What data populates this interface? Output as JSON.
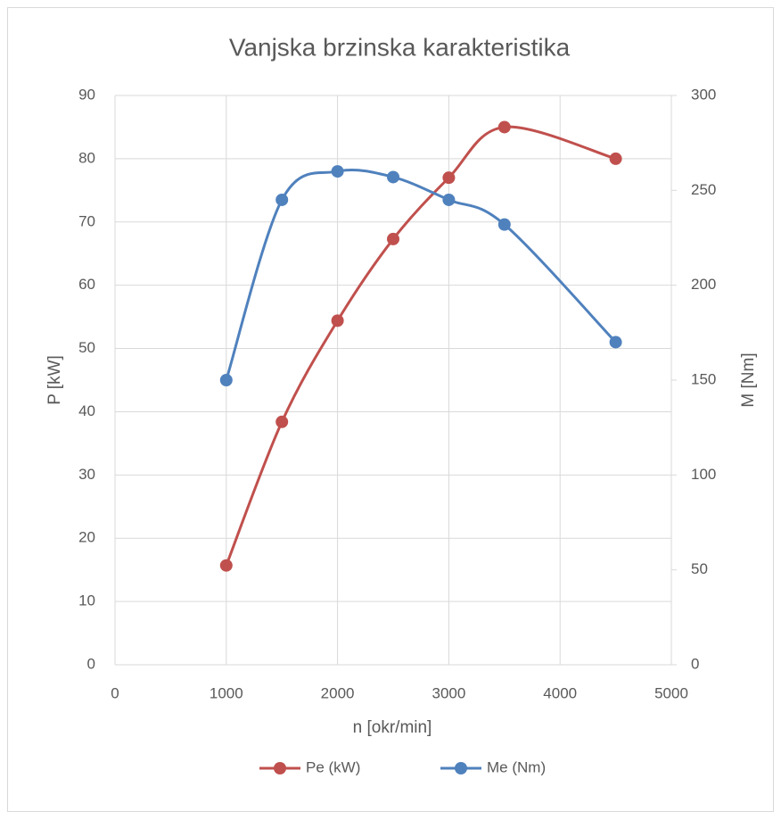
{
  "chart_data": {
    "type": "line",
    "title": "Vanjska brzinska karakteristika",
    "x_label": "n [okr/min]",
    "y_label": "P [kW]",
    "y2_label": "M [Nm]",
    "x": [
      1000,
      1500,
      2000,
      2500,
      3000,
      3500,
      4500
    ],
    "series": [
      {
        "name": "Pe (kW)",
        "color": "#c0504d",
        "values": [
          15.7,
          38.4,
          54.4,
          67.3,
          77,
          85,
          80
        ]
      },
      {
        "name": "Me (Nm)",
        "color": "#4f81bd",
        "axis": "y2",
        "values": [
          150,
          245,
          260,
          257,
          245,
          232,
          170
        ]
      }
    ],
    "xlim": [
      0,
      5000
    ],
    "xticks": [
      0,
      1000,
      2000,
      3000,
      4000,
      5000
    ],
    "ylim": [
      0,
      90
    ],
    "yticks": [
      0,
      10,
      20,
      30,
      40,
      50,
      60,
      70,
      80,
      90
    ],
    "y2lim": [
      0,
      300
    ],
    "y2ticks": [
      0,
      50,
      100,
      150,
      200,
      250,
      300
    ],
    "grid": true,
    "smooth": true,
    "legend": "bottom"
  }
}
